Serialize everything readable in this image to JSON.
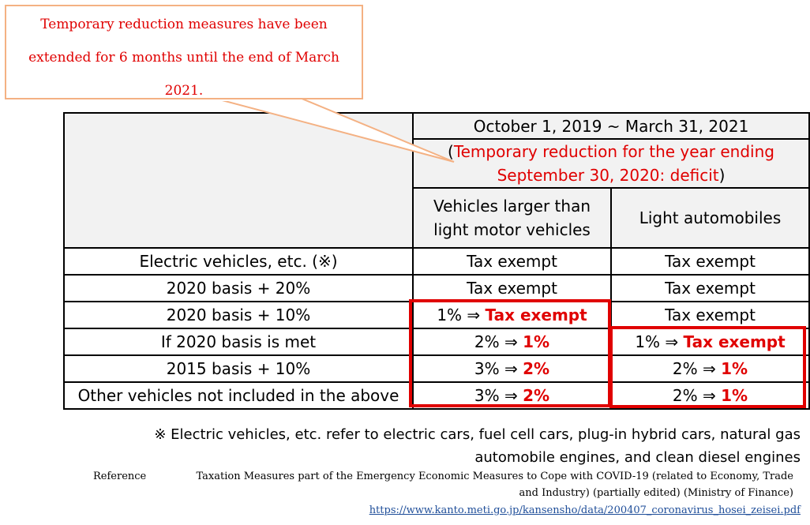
{
  "callout": {
    "lines": [
      "Temporary reduction measures have been",
      "extended for 6 months until the end of March",
      "2021."
    ]
  },
  "table": {
    "period": "October 1, 2019 ~ March 31, 2021",
    "note_open": "(",
    "note_line1": "Temporary reduction for the year ending",
    "note_line2": "September 30, 2020: deficit",
    "note_close": ")",
    "col2_line1": "Vehicles larger than",
    "col2_line2": "light motor vehicles",
    "col3": "Light automobiles",
    "rows": [
      {
        "label": "Electric vehicles, etc. (※)",
        "c2": "Tax exempt",
        "c3": "Tax exempt"
      },
      {
        "label": "2020 basis + 20%",
        "c2": "Tax exempt",
        "c3": "Tax exempt"
      },
      {
        "label": "2020 basis + 10%",
        "c2_pre": "1% ⇒ ",
        "c2_new": "Tax exempt",
        "c3": "Tax exempt"
      },
      {
        "label": "If 2020 basis is met",
        "c2_pre": "2% ⇒ ",
        "c2_new": "1%",
        "c3_pre": "1% ⇒ ",
        "c3_new": "Tax exempt"
      },
      {
        "label": "2015 basis + 10%",
        "c2_pre": "3% ⇒ ",
        "c2_new": "2%",
        "c3_pre": "2% ⇒ ",
        "c3_new": "1%"
      },
      {
        "label": "Other vehicles not included in the above",
        "c2_pre": "3% ⇒ ",
        "c2_new": "2%",
        "c3_pre": "2% ⇒ ",
        "c3_new": "1%"
      }
    ]
  },
  "footnote": {
    "line1": "※ Electric vehicles, etc. refer to  electric cars, fuel cell cars, plug-in hybrid cars, natural gas",
    "line2": "automobile engines, and clean diesel engines"
  },
  "reference": {
    "label": "Reference",
    "line1": "Taxation Measures part of the Emergency Economic Measures to Cope with COVID-19 (related to Economy, Trade",
    "line2": "and Industry) (partially edited) (Ministry of Finance)",
    "url": "https://www.kanto.meti.go.jp/kansensho/data/200407_coronavirus_hosei_zeisei.pdf"
  },
  "colors": {
    "accent_red": "#e00000",
    "callout_border": "#f4b183",
    "link": "#1f4e99"
  }
}
